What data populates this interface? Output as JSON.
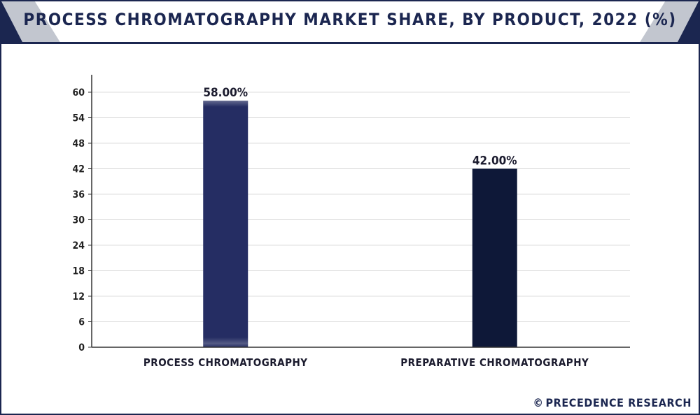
{
  "title": "PROCESS CHROMATOGRAPHY MARKET SHARE, BY PRODUCT, 2022 (%)",
  "credit": {
    "symbol": "©",
    "text": "PRECEDENCE RESEARCH"
  },
  "colors": {
    "brand": "#1b2650",
    "bar_process": "#252d63",
    "bar_preparative": "#0e1838",
    "grid": "#dcdcdc",
    "axis": "#333333"
  },
  "chart_data": {
    "type": "bar",
    "title": "PROCESS CHROMATOGRAPHY MARKET SHARE, BY PRODUCT, 2022 (%)",
    "xlabel": "",
    "ylabel": "",
    "categories": [
      "PROCESS CHROMATOGRAPHY",
      "PREPARATIVE CHROMATOGRAPHY"
    ],
    "values": [
      58,
      42
    ],
    "data_labels": [
      "58.00%",
      "42.00%"
    ],
    "ylim": [
      0,
      60
    ],
    "yticks": [
      0,
      6,
      12,
      18,
      24,
      30,
      36,
      42,
      48,
      54,
      60
    ],
    "grid": true,
    "legend": "none"
  }
}
